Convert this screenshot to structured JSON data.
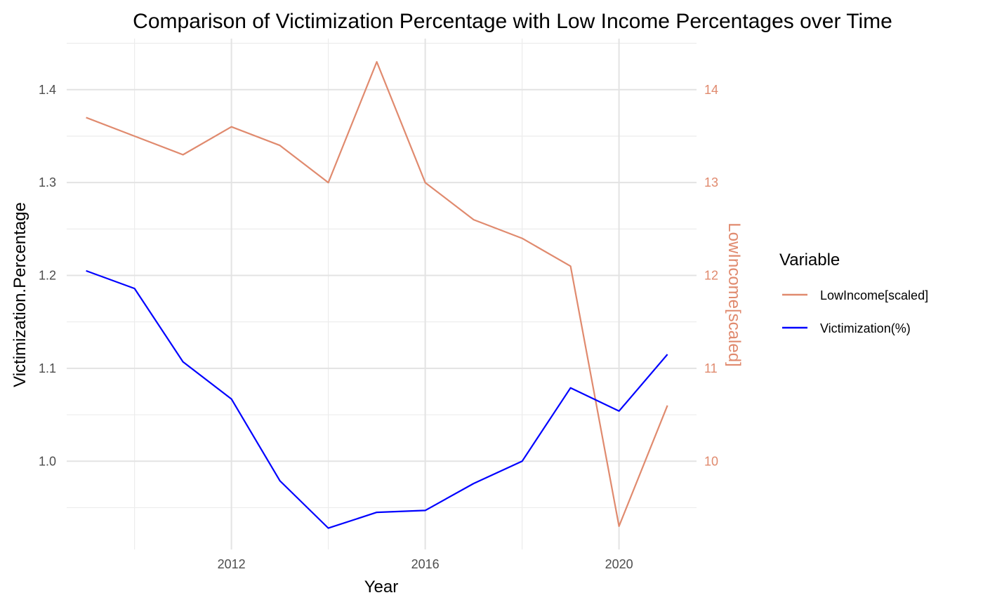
{
  "chart_data": {
    "type": "line",
    "title": "Comparison of Victimization Percentage with Low Income Percentages over Time",
    "xlabel": "Year",
    "ylabel": "Victimization.Percentage",
    "ylabel_right": "LowIncome[scaled]",
    "xlim": [
      2008.6,
      2021.6
    ],
    "ylim": [
      0.905,
      1.455
    ],
    "ylim_right": [
      9.05,
      14.55
    ],
    "x_ticks": [
      2012,
      2016,
      2020
    ],
    "y_ticks": [
      1.0,
      1.1,
      1.2,
      1.3,
      1.4
    ],
    "y_tick_labels": [
      "1.0",
      "1.1",
      "1.2",
      "1.3",
      "1.4"
    ],
    "y_right_ticks": [
      10,
      11,
      12,
      13,
      14
    ],
    "grid": true,
    "legend_title": "Variable",
    "legend_position": "right",
    "series": [
      {
        "name": "LowIncome[scaled]",
        "color": "#e08a6e",
        "axis": "right",
        "x": [
          2009,
          2010,
          2011,
          2012,
          2013,
          2014,
          2015,
          2016,
          2017,
          2018,
          2019,
          2020,
          2021
        ],
        "values": [
          13.7,
          13.5,
          13.3,
          13.6,
          13.4,
          13.0,
          14.3,
          13.0,
          12.6,
          12.4,
          12.1,
          9.3,
          10.6
        ]
      },
      {
        "name": "Victimization(%)",
        "color": "#0000ff",
        "axis": "left",
        "x": [
          2009,
          2010,
          2011,
          2012,
          2013,
          2014,
          2015,
          2016,
          2017,
          2018,
          2019,
          2020,
          2021
        ],
        "values": [
          1.205,
          1.186,
          1.107,
          1.067,
          0.979,
          0.928,
          0.945,
          0.947,
          0.976,
          1.0,
          1.079,
          1.054,
          1.115
        ]
      }
    ]
  }
}
